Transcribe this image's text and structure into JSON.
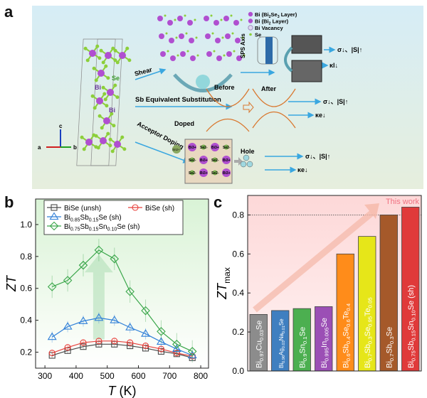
{
  "panels": {
    "a": "a",
    "b": "b",
    "c": "c"
  },
  "schematic": {
    "legend": [
      "Bi (Bi2Se3 Layer)",
      "Bi (Bi2 Layer)",
      "Bi Vacancy",
      "Se"
    ],
    "atom_labels": {
      "se": "Se",
      "bi1": "Bi",
      "bi2": "Bi"
    },
    "axes": {
      "a": "a",
      "b": "b",
      "c": "c"
    },
    "routes": {
      "shear": "Shear",
      "sb": "Sb Equivalent Substitution",
      "acceptor": "Acceptor Doping"
    },
    "sps_axis": "SPS Axis",
    "band": {
      "before": "Before",
      "after": "After"
    },
    "doped": "Doped",
    "dopant": "Sn2+",
    "hole": "Hole",
    "lattice_ions": [
      "Bi3+",
      "Se2-",
      "Bi3+",
      "Se2-",
      "Se2-",
      "Bi3+",
      "Se2-",
      "Bi3+",
      "Se2-",
      "Bi3+",
      "Se2-",
      "Bi3+"
    ],
    "effects": {
      "shear": [
        "σ↓、|S|↑",
        "κl↓"
      ],
      "sb": [
        "σ↓、|S|↑",
        "κe↓"
      ],
      "acceptor": [
        "σ↓、|S|↑",
        "κe↓"
      ]
    },
    "colors": {
      "bi": "#b04fd0",
      "se": "#8ccf3a",
      "arrow": "#3aa7e0",
      "band": "#d9782f",
      "bg_top": "#d8eef6",
      "bg_bottom": "#e8f0e0"
    }
  },
  "chart_data": [
    {
      "type": "line",
      "panel": "b",
      "xlabel": "T (K)",
      "ylabel": "ZT",
      "xlim": [
        270,
        825
      ],
      "ylim": [
        0.1,
        1.16
      ],
      "xticks": [
        300,
        400,
        500,
        600,
        700,
        800
      ],
      "yticks": [
        0.2,
        0.4,
        0.6,
        0.8,
        1.0
      ],
      "legend_position": "top",
      "x": [
        323,
        373,
        423,
        473,
        523,
        573,
        623,
        673,
        723,
        773
      ],
      "series": [
        {
          "name": "BiSe (unsh)",
          "marker": "square",
          "color": "#4a4a4a",
          "values": [
            0.18,
            0.21,
            0.235,
            0.25,
            0.25,
            0.24,
            0.225,
            0.205,
            0.19,
            0.165
          ]
        },
        {
          "name": "BiSe (sh)",
          "marker": "circle",
          "color": "#e8413c",
          "values": [
            0.195,
            0.23,
            0.26,
            0.27,
            0.27,
            0.26,
            0.24,
            0.22,
            0.195,
            0.175
          ]
        },
        {
          "name": "Bi0.85Sb0.15Se (sh)",
          "marker": "triangle",
          "color": "#2f7fd8",
          "values": [
            0.295,
            0.36,
            0.395,
            0.415,
            0.4,
            0.355,
            0.315,
            0.265,
            0.22,
            0.18
          ]
        },
        {
          "name": "Bi0.75Sb0.15Sn0.10Se (sh)",
          "marker": "diamond",
          "color": "#3aa64a",
          "values": [
            0.61,
            0.65,
            0.745,
            0.84,
            0.785,
            0.58,
            0.46,
            0.33,
            0.25,
            0.205
          ]
        }
      ]
    },
    {
      "type": "bar",
      "panel": "c",
      "ylabel": "ZTmax",
      "ylim": [
        0,
        0.9
      ],
      "yticks": [
        0.0,
        0.2,
        0.4,
        0.6,
        0.8
      ],
      "reference_line": 0.8,
      "annotation": "This work",
      "categories": [
        "Bi0.97Cu0.03Se",
        "Bi0.96Ag0.03Na0.01Se",
        "Bi0.9Sn0.1Se",
        "Bi0.995In0.005Se",
        "Bi0.6Sb0.4Se0.6Te0.4",
        "Bi0.7Sb0.3Se0.95Te0.05",
        "Bi0.7Sb0.3Se",
        "Bi0.75Sb0.15Sn0.10Se (sh)"
      ],
      "values": [
        0.29,
        0.31,
        0.32,
        0.33,
        0.6,
        0.69,
        0.8,
        0.84
      ],
      "colors": [
        "#8c8c8c",
        "#3f7fc0",
        "#4caf50",
        "#9b4fb5",
        "#ff8c1a",
        "#e6e619",
        "#a5592a",
        "#e03a3a"
      ]
    }
  ]
}
